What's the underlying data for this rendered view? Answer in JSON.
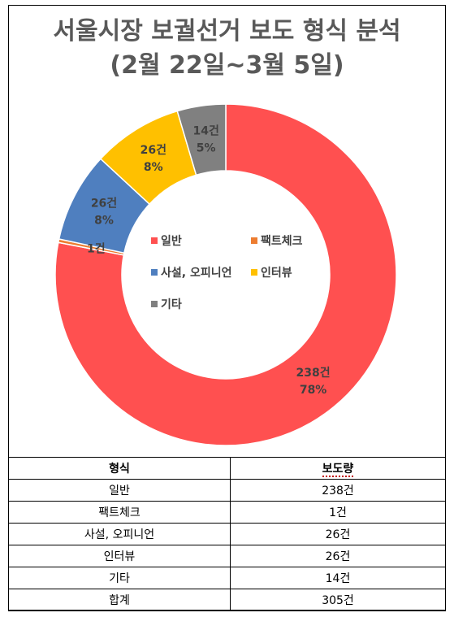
{
  "title_line1": "서울시장 보궐선거 보도 형식 분석",
  "title_line2": "(2월 22일~3월 5일)",
  "chart_data": {
    "type": "pie",
    "title": "서울시장 보궐선거 보도 형식 분석 (2월 22일~3월 5일)",
    "categories": [
      "일반",
      "팩트체크",
      "사설, 오피니언",
      "인터뷰",
      "기타"
    ],
    "values": [
      238,
      1,
      26,
      26,
      14
    ],
    "value_labels": [
      "238건",
      "1건",
      "26건",
      "26건",
      "14건"
    ],
    "percent_labels": [
      "78%",
      "",
      "8%",
      "8%",
      "5%"
    ],
    "colors": [
      "#ff5050",
      "#ed7d31",
      "#4f7fbf",
      "#ffc000",
      "#808080"
    ],
    "legend_position": "center"
  },
  "table": {
    "headers": [
      "형식",
      "보도량"
    ],
    "rows": [
      [
        "일반",
        "238건"
      ],
      [
        "팩트체크",
        "1건"
      ],
      [
        "사설, 오피니언",
        "26건"
      ],
      [
        "인터뷰",
        "26건"
      ],
      [
        "기타",
        "14건"
      ],
      [
        "합계",
        "305건"
      ]
    ]
  }
}
